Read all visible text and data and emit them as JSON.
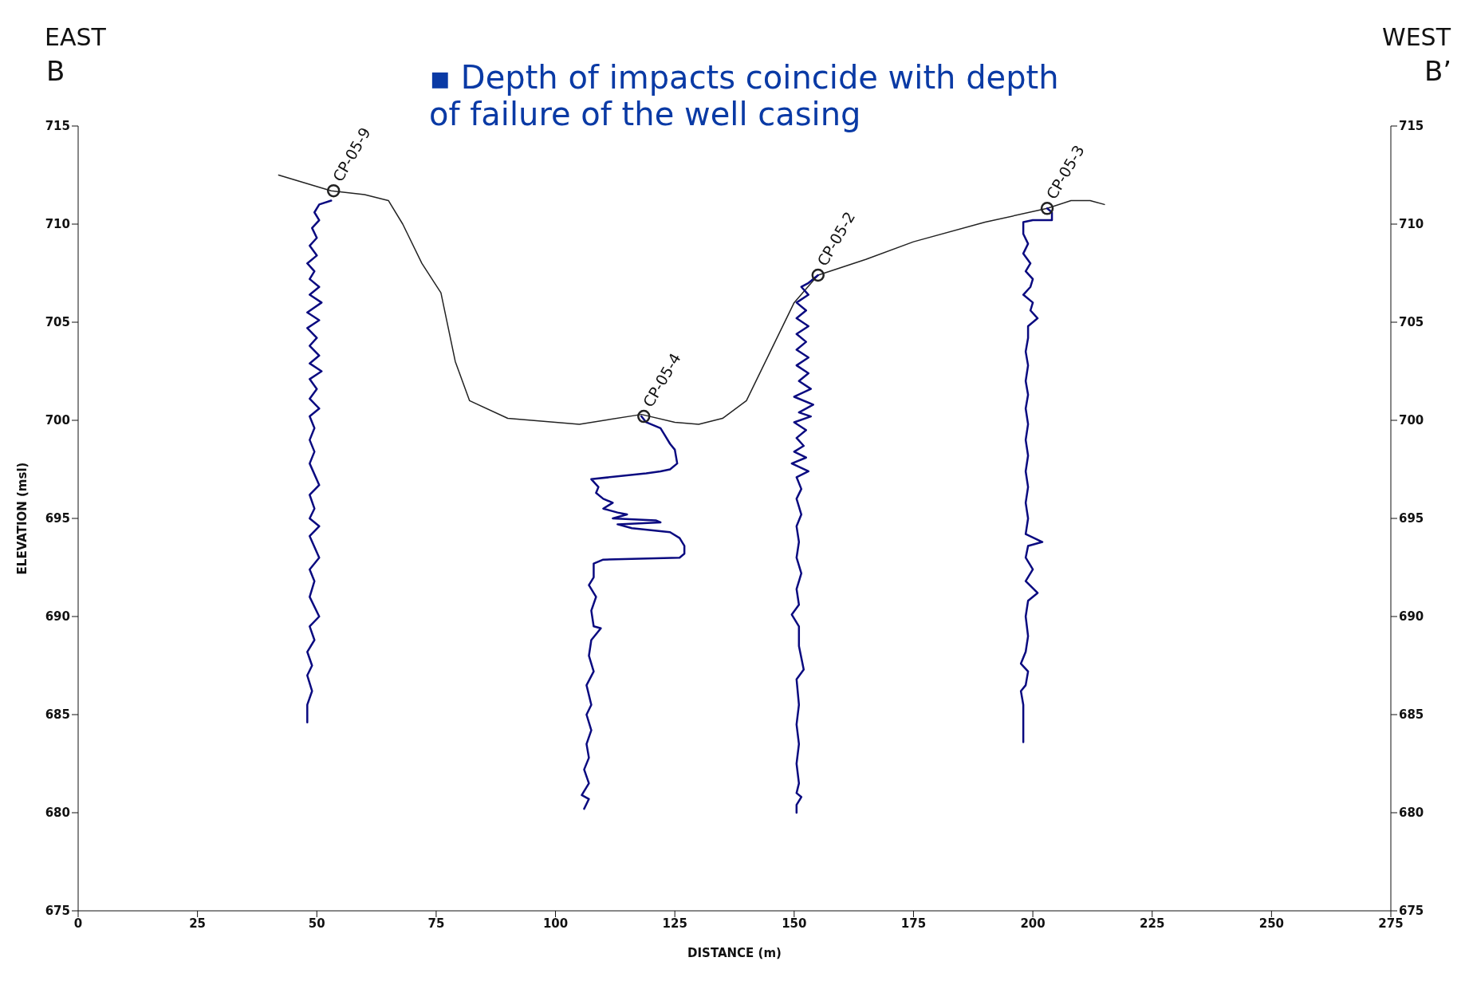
{
  "chart_data": {
    "type": "line",
    "xlabel": "DISTANCE (m)",
    "ylabel": "ELEVATION (msl)",
    "annotations": [
      "EAST",
      "B",
      "WEST",
      "B’",
      "▪ Depth of impacts coincide with depth of failure of the well casing",
      {
        "text": "CP-05-9",
        "x": 53.5,
        "y": 711.7
      },
      {
        "text": "CP-05-4",
        "x": 118.5,
        "y": 700.2
      },
      {
        "text": "CP-05-2",
        "x": 155,
        "y": 707.4
      },
      {
        "text": "CP-05-3",
        "x": 203,
        "y": 710.8
      }
    ],
    "xlim": [
      0,
      275
    ],
    "xticks": [
      0,
      25,
      50,
      75,
      100,
      125,
      150,
      175,
      200,
      225,
      250,
      275
    ],
    "ylim": [
      675,
      715
    ],
    "yticks": [
      675,
      680,
      685,
      690,
      695,
      700,
      705,
      710,
      715
    ],
    "y2lim": [
      675,
      715
    ],
    "y2ticks": [
      675,
      680,
      685,
      690,
      695,
      700,
      705,
      710,
      715
    ],
    "line_style": "solid",
    "series": [
      {
        "color": "#222222",
        "x": [
          42,
          53,
          60,
          65,
          68,
          72,
          76,
          79,
          82,
          90,
          105,
          118,
          125,
          130,
          135,
          140,
          145,
          150,
          155,
          165,
          175,
          190,
          203,
          208,
          212,
          215
        ],
        "values": [
          712.5,
          711.7,
          711.5,
          711.2,
          710,
          708,
          706.5,
          703,
          701,
          700.1,
          699.8,
          700.3,
          699.9,
          699.8,
          700.1,
          701,
          703.5,
          706,
          707.4,
          708.2,
          709.1,
          710.1,
          710.8,
          711.2,
          711.2,
          711
        ]
      },
      {
        "color": "#0a0a80",
        "x": [
          53,
          50.5,
          49.5,
          50.5,
          49,
          50,
          48.5,
          50,
          48,
          49.5,
          48.5,
          50.5,
          48.5,
          51,
          48,
          50.5,
          48,
          50,
          48.5,
          50.5,
          48.5,
          51,
          48.5,
          50,
          48.5,
          50.5,
          48.5,
          49.5,
          48.5,
          49.5,
          48.5,
          50.5,
          48.5,
          49.5,
          48.5,
          50.5,
          48.5,
          50.5,
          48.5,
          49.5,
          48.5,
          50.5,
          48.5,
          49.5,
          48,
          49,
          48,
          49,
          48,
          48
        ],
        "values": [
          711.2,
          711,
          710.6,
          710.2,
          709.8,
          709.3,
          708.9,
          708.4,
          708,
          707.6,
          707.2,
          706.8,
          706.4,
          706,
          705.5,
          705.1,
          704.7,
          704.2,
          703.8,
          703.3,
          702.9,
          702.5,
          702.1,
          701.6,
          701.1,
          700.6,
          700.2,
          699.6,
          699,
          698.4,
          697.8,
          696.7,
          696.2,
          695.5,
          695,
          694.6,
          694.1,
          693,
          692.4,
          691.8,
          691,
          690,
          689.5,
          688.8,
          688.2,
          687.5,
          687,
          686.2,
          685.5,
          684.6
        ]
      },
      {
        "color": "#0a0a80",
        "x": [
          118,
          119,
          122,
          123,
          124,
          125,
          125.5,
          124,
          122,
          119,
          107.5,
          109,
          108.5,
          110,
          112,
          110,
          113,
          115,
          112,
          121,
          122,
          113,
          116,
          124,
          126,
          127,
          127,
          126,
          110,
          108,
          108,
          107,
          108.5,
          107.5,
          108,
          109.5,
          107.5,
          107,
          108,
          106.5,
          107.5,
          106.5,
          107.5,
          106.5,
          107,
          106,
          107,
          105.5,
          107,
          106
        ],
        "values": [
          700.2,
          699.9,
          699.6,
          699.2,
          698.8,
          698.5,
          697.8,
          697.5,
          697.4,
          697.3,
          697,
          696.6,
          696.3,
          696,
          695.8,
          695.5,
          695.3,
          695.2,
          695,
          694.9,
          694.8,
          694.7,
          694.5,
          694.3,
          694,
          693.6,
          693.2,
          693,
          692.9,
          692.7,
          692,
          691.6,
          691,
          690.3,
          689.5,
          689.4,
          688.8,
          688,
          687.2,
          686.5,
          685.5,
          685,
          684.2,
          683.5,
          682.8,
          682.2,
          681.5,
          680.9,
          680.7,
          680.2
        ]
      },
      {
        "color": "#0a0a80",
        "x": [
          155,
          153,
          151.5,
          153,
          150.5,
          152.5,
          150.5,
          153,
          150.5,
          152.5,
          150.5,
          153,
          150.5,
          153,
          151,
          153.5,
          150,
          154,
          151,
          153.5,
          150,
          152.5,
          150.5,
          152,
          150,
          152.5,
          149.5,
          153,
          150.5,
          151.5,
          150.5,
          151.5,
          150.5,
          151,
          150.5,
          151.5,
          150.5,
          151,
          149.5,
          151,
          151,
          152,
          150.5,
          151,
          150.5,
          151,
          150.5,
          151,
          150.5,
          151.5,
          150.5,
          150.5
        ],
        "values": [
          707.4,
          707,
          706.8,
          706.4,
          706,
          705.6,
          705.2,
          704.8,
          704.4,
          704,
          703.6,
          703.2,
          702.8,
          702.4,
          702,
          701.6,
          701.2,
          700.8,
          700.4,
          700.2,
          699.9,
          699.5,
          699.1,
          698.7,
          698.4,
          698.1,
          697.8,
          697.4,
          697.1,
          696.5,
          696,
          695.2,
          694.6,
          693.8,
          693,
          692.2,
          691.4,
          690.6,
          690.1,
          689.5,
          688.5,
          687.3,
          686.8,
          685.5,
          684.5,
          683.5,
          682.5,
          681.5,
          681,
          680.8,
          680.4,
          680
        ]
      },
      {
        "color": "#0a0a80",
        "x": [
          203,
          204,
          204,
          200,
          198,
          198,
          199,
          198,
          199.5,
          198.5,
          200,
          199.5,
          198,
          200,
          199.5,
          201,
          199,
          199,
          198.5,
          199,
          198.5,
          199,
          198.5,
          199,
          198.5,
          199,
          198.5,
          199,
          198.5,
          199,
          198.5,
          202,
          199,
          198.5,
          200,
          198.5,
          201,
          199,
          198.5,
          199,
          198.5,
          197.5,
          199,
          198.5,
          197.5,
          198,
          198,
          198
        ],
        "values": [
          710.8,
          710.6,
          710.2,
          710.2,
          710.1,
          709.5,
          709,
          708.5,
          708,
          707.6,
          707.2,
          706.8,
          706.4,
          706,
          705.6,
          705.2,
          704.8,
          704.2,
          703.5,
          702.8,
          702,
          701.3,
          700.6,
          699.8,
          699,
          698.2,
          697.4,
          696.6,
          695.8,
          695,
          694.2,
          693.8,
          693.6,
          693,
          692.4,
          691.8,
          691.2,
          690.8,
          690,
          689,
          688.2,
          687.6,
          687.2,
          686.5,
          686.2,
          685.5,
          684.5,
          683.6
        ]
      },
      {
        "type": "scatter",
        "color": "#222222",
        "marker": "circle",
        "x": [
          53.5,
          118.5,
          155,
          203
        ],
        "values": [
          711.7,
          700.2,
          707.4,
          710.8
        ]
      }
    ]
  }
}
